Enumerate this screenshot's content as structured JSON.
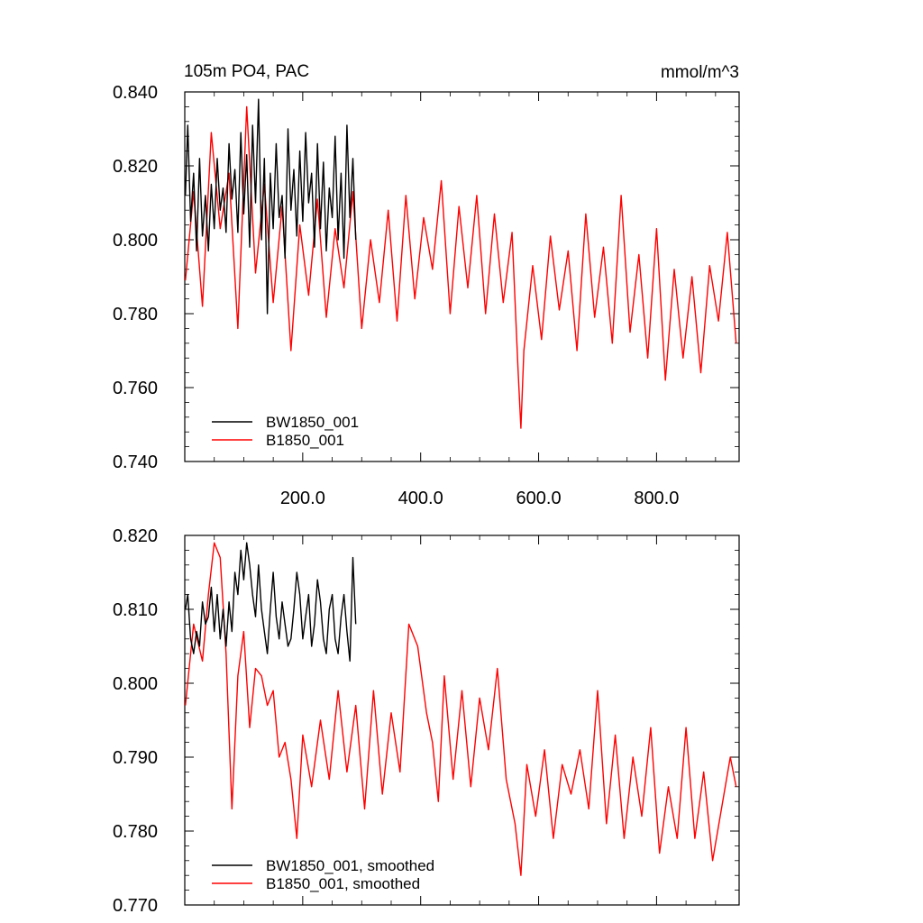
{
  "figure": {
    "title_left": "105m PO4, PAC",
    "title_right": "mmol/m^3"
  },
  "chart_data": [
    {
      "type": "line",
      "title": "105m PO4, PAC",
      "units": "mmol/m^3",
      "xlim": [
        0,
        940
      ],
      "ylim": [
        0.74,
        0.84
      ],
      "x_ticks": [
        200,
        400,
        600,
        800
      ],
      "x_tick_labels": [
        "200.0",
        "400.0",
        "600.0",
        "800.0"
      ],
      "y_ticks": [
        0.74,
        0.76,
        0.78,
        0.8,
        0.82,
        0.84
      ],
      "y_tick_labels": [
        "0.740",
        "0.760",
        "0.780",
        "0.800",
        "0.820",
        "0.840"
      ],
      "legend_position": "bottom-left",
      "series": [
        {
          "name": "BW1850_001",
          "color": "#000000",
          "x": [
            1,
            5,
            10,
            15,
            20,
            25,
            30,
            35,
            40,
            45,
            50,
            55,
            60,
            65,
            70,
            75,
            80,
            85,
            90,
            95,
            100,
            105,
            110,
            115,
            120,
            125,
            130,
            135,
            140,
            145,
            150,
            155,
            160,
            165,
            170,
            175,
            180,
            185,
            190,
            195,
            200,
            205,
            210,
            215,
            220,
            225,
            230,
            235,
            240,
            245,
            250,
            255,
            260,
            265,
            270,
            275,
            280,
            285,
            290
          ],
          "values": [
            0.812,
            0.831,
            0.805,
            0.818,
            0.797,
            0.822,
            0.801,
            0.812,
            0.797,
            0.815,
            0.803,
            0.822,
            0.808,
            0.814,
            0.802,
            0.826,
            0.811,
            0.819,
            0.802,
            0.829,
            0.807,
            0.823,
            0.798,
            0.831,
            0.81,
            0.838,
            0.8,
            0.822,
            0.78,
            0.818,
            0.803,
            0.826,
            0.806,
            0.812,
            0.795,
            0.83,
            0.808,
            0.819,
            0.801,
            0.824,
            0.805,
            0.829,
            0.81,
            0.818,
            0.798,
            0.826,
            0.803,
            0.821,
            0.797,
            0.814,
            0.806,
            0.828,
            0.8,
            0.818,
            0.795,
            0.831,
            0.806,
            0.822,
            0.8
          ]
        },
        {
          "name": "B1850_001",
          "color": "#ff0000",
          "x": [
            1,
            15,
            30,
            45,
            60,
            75,
            90,
            105,
            120,
            135,
            150,
            165,
            180,
            195,
            210,
            225,
            240,
            255,
            270,
            285,
            300,
            315,
            330,
            345,
            360,
            375,
            390,
            405,
            420,
            435,
            450,
            465,
            480,
            495,
            510,
            525,
            540,
            555,
            565,
            570,
            575,
            590,
            605,
            620,
            635,
            650,
            665,
            680,
            695,
            710,
            725,
            740,
            755,
            770,
            785,
            800,
            815,
            830,
            845,
            860,
            875,
            890,
            905,
            920,
            935
          ],
          "values": [
            0.789,
            0.813,
            0.782,
            0.829,
            0.803,
            0.818,
            0.776,
            0.836,
            0.791,
            0.815,
            0.783,
            0.809,
            0.77,
            0.804,
            0.785,
            0.811,
            0.779,
            0.803,
            0.787,
            0.813,
            0.776,
            0.8,
            0.783,
            0.808,
            0.778,
            0.812,
            0.784,
            0.806,
            0.792,
            0.816,
            0.78,
            0.809,
            0.787,
            0.812,
            0.78,
            0.807,
            0.783,
            0.802,
            0.765,
            0.749,
            0.77,
            0.793,
            0.773,
            0.801,
            0.781,
            0.797,
            0.77,
            0.807,
            0.779,
            0.798,
            0.772,
            0.812,
            0.775,
            0.796,
            0.768,
            0.803,
            0.762,
            0.792,
            0.768,
            0.79,
            0.764,
            0.793,
            0.778,
            0.802,
            0.772
          ]
        }
      ]
    },
    {
      "type": "line",
      "xlim": [
        0,
        940
      ],
      "ylim": [
        0.77,
        0.82
      ],
      "x_ticks": [
        200,
        400,
        600,
        800
      ],
      "y_ticks": [
        0.77,
        0.78,
        0.79,
        0.8,
        0.81,
        0.82
      ],
      "y_tick_labels": [
        "0.770",
        "0.780",
        "0.790",
        "0.800",
        "0.810",
        "0.820"
      ],
      "legend_position": "bottom-left",
      "series": [
        {
          "name": "BW1850_001, smoothed",
          "color": "#000000",
          "x": [
            1,
            5,
            10,
            15,
            20,
            25,
            30,
            35,
            40,
            45,
            50,
            55,
            60,
            65,
            70,
            75,
            80,
            85,
            90,
            95,
            100,
            105,
            110,
            115,
            120,
            125,
            130,
            135,
            140,
            145,
            150,
            155,
            160,
            165,
            170,
            175,
            180,
            185,
            190,
            195,
            200,
            205,
            210,
            215,
            220,
            225,
            230,
            235,
            240,
            245,
            250,
            255,
            260,
            265,
            270,
            275,
            280,
            285,
            290
          ],
          "values": [
            0.81,
            0.812,
            0.806,
            0.804,
            0.807,
            0.805,
            0.811,
            0.808,
            0.809,
            0.813,
            0.807,
            0.812,
            0.806,
            0.81,
            0.805,
            0.811,
            0.807,
            0.815,
            0.812,
            0.818,
            0.814,
            0.819,
            0.816,
            0.812,
            0.809,
            0.816,
            0.81,
            0.807,
            0.804,
            0.81,
            0.815,
            0.809,
            0.806,
            0.811,
            0.808,
            0.805,
            0.806,
            0.81,
            0.815,
            0.812,
            0.806,
            0.809,
            0.812,
            0.805,
            0.808,
            0.814,
            0.811,
            0.806,
            0.804,
            0.81,
            0.812,
            0.806,
            0.804,
            0.809,
            0.812,
            0.807,
            0.803,
            0.817,
            0.808
          ]
        },
        {
          "name": "B1850_001, smoothed",
          "color": "#ff0000",
          "x": [
            1,
            15,
            30,
            40,
            50,
            60,
            70,
            80,
            90,
            100,
            110,
            120,
            130,
            140,
            150,
            160,
            170,
            180,
            190,
            200,
            215,
            230,
            245,
            260,
            275,
            290,
            305,
            320,
            335,
            350,
            365,
            380,
            395,
            410,
            420,
            430,
            440,
            455,
            470,
            485,
            500,
            515,
            530,
            545,
            560,
            570,
            580,
            595,
            610,
            625,
            640,
            655,
            670,
            685,
            700,
            715,
            730,
            745,
            760,
            775,
            790,
            805,
            820,
            835,
            850,
            865,
            880,
            895,
            910,
            925,
            935
          ],
          "values": [
            0.797,
            0.808,
            0.803,
            0.812,
            0.819,
            0.817,
            0.804,
            0.783,
            0.801,
            0.807,
            0.794,
            0.802,
            0.801,
            0.797,
            0.799,
            0.79,
            0.792,
            0.787,
            0.779,
            0.793,
            0.786,
            0.795,
            0.787,
            0.799,
            0.788,
            0.797,
            0.783,
            0.799,
            0.785,
            0.796,
            0.788,
            0.808,
            0.805,
            0.796,
            0.792,
            0.784,
            0.801,
            0.787,
            0.799,
            0.786,
            0.798,
            0.791,
            0.802,
            0.787,
            0.781,
            0.774,
            0.789,
            0.782,
            0.791,
            0.779,
            0.789,
            0.785,
            0.791,
            0.783,
            0.799,
            0.781,
            0.793,
            0.779,
            0.79,
            0.782,
            0.794,
            0.777,
            0.786,
            0.779,
            0.794,
            0.779,
            0.788,
            0.776,
            0.783,
            0.79,
            0.786
          ]
        }
      ]
    }
  ]
}
